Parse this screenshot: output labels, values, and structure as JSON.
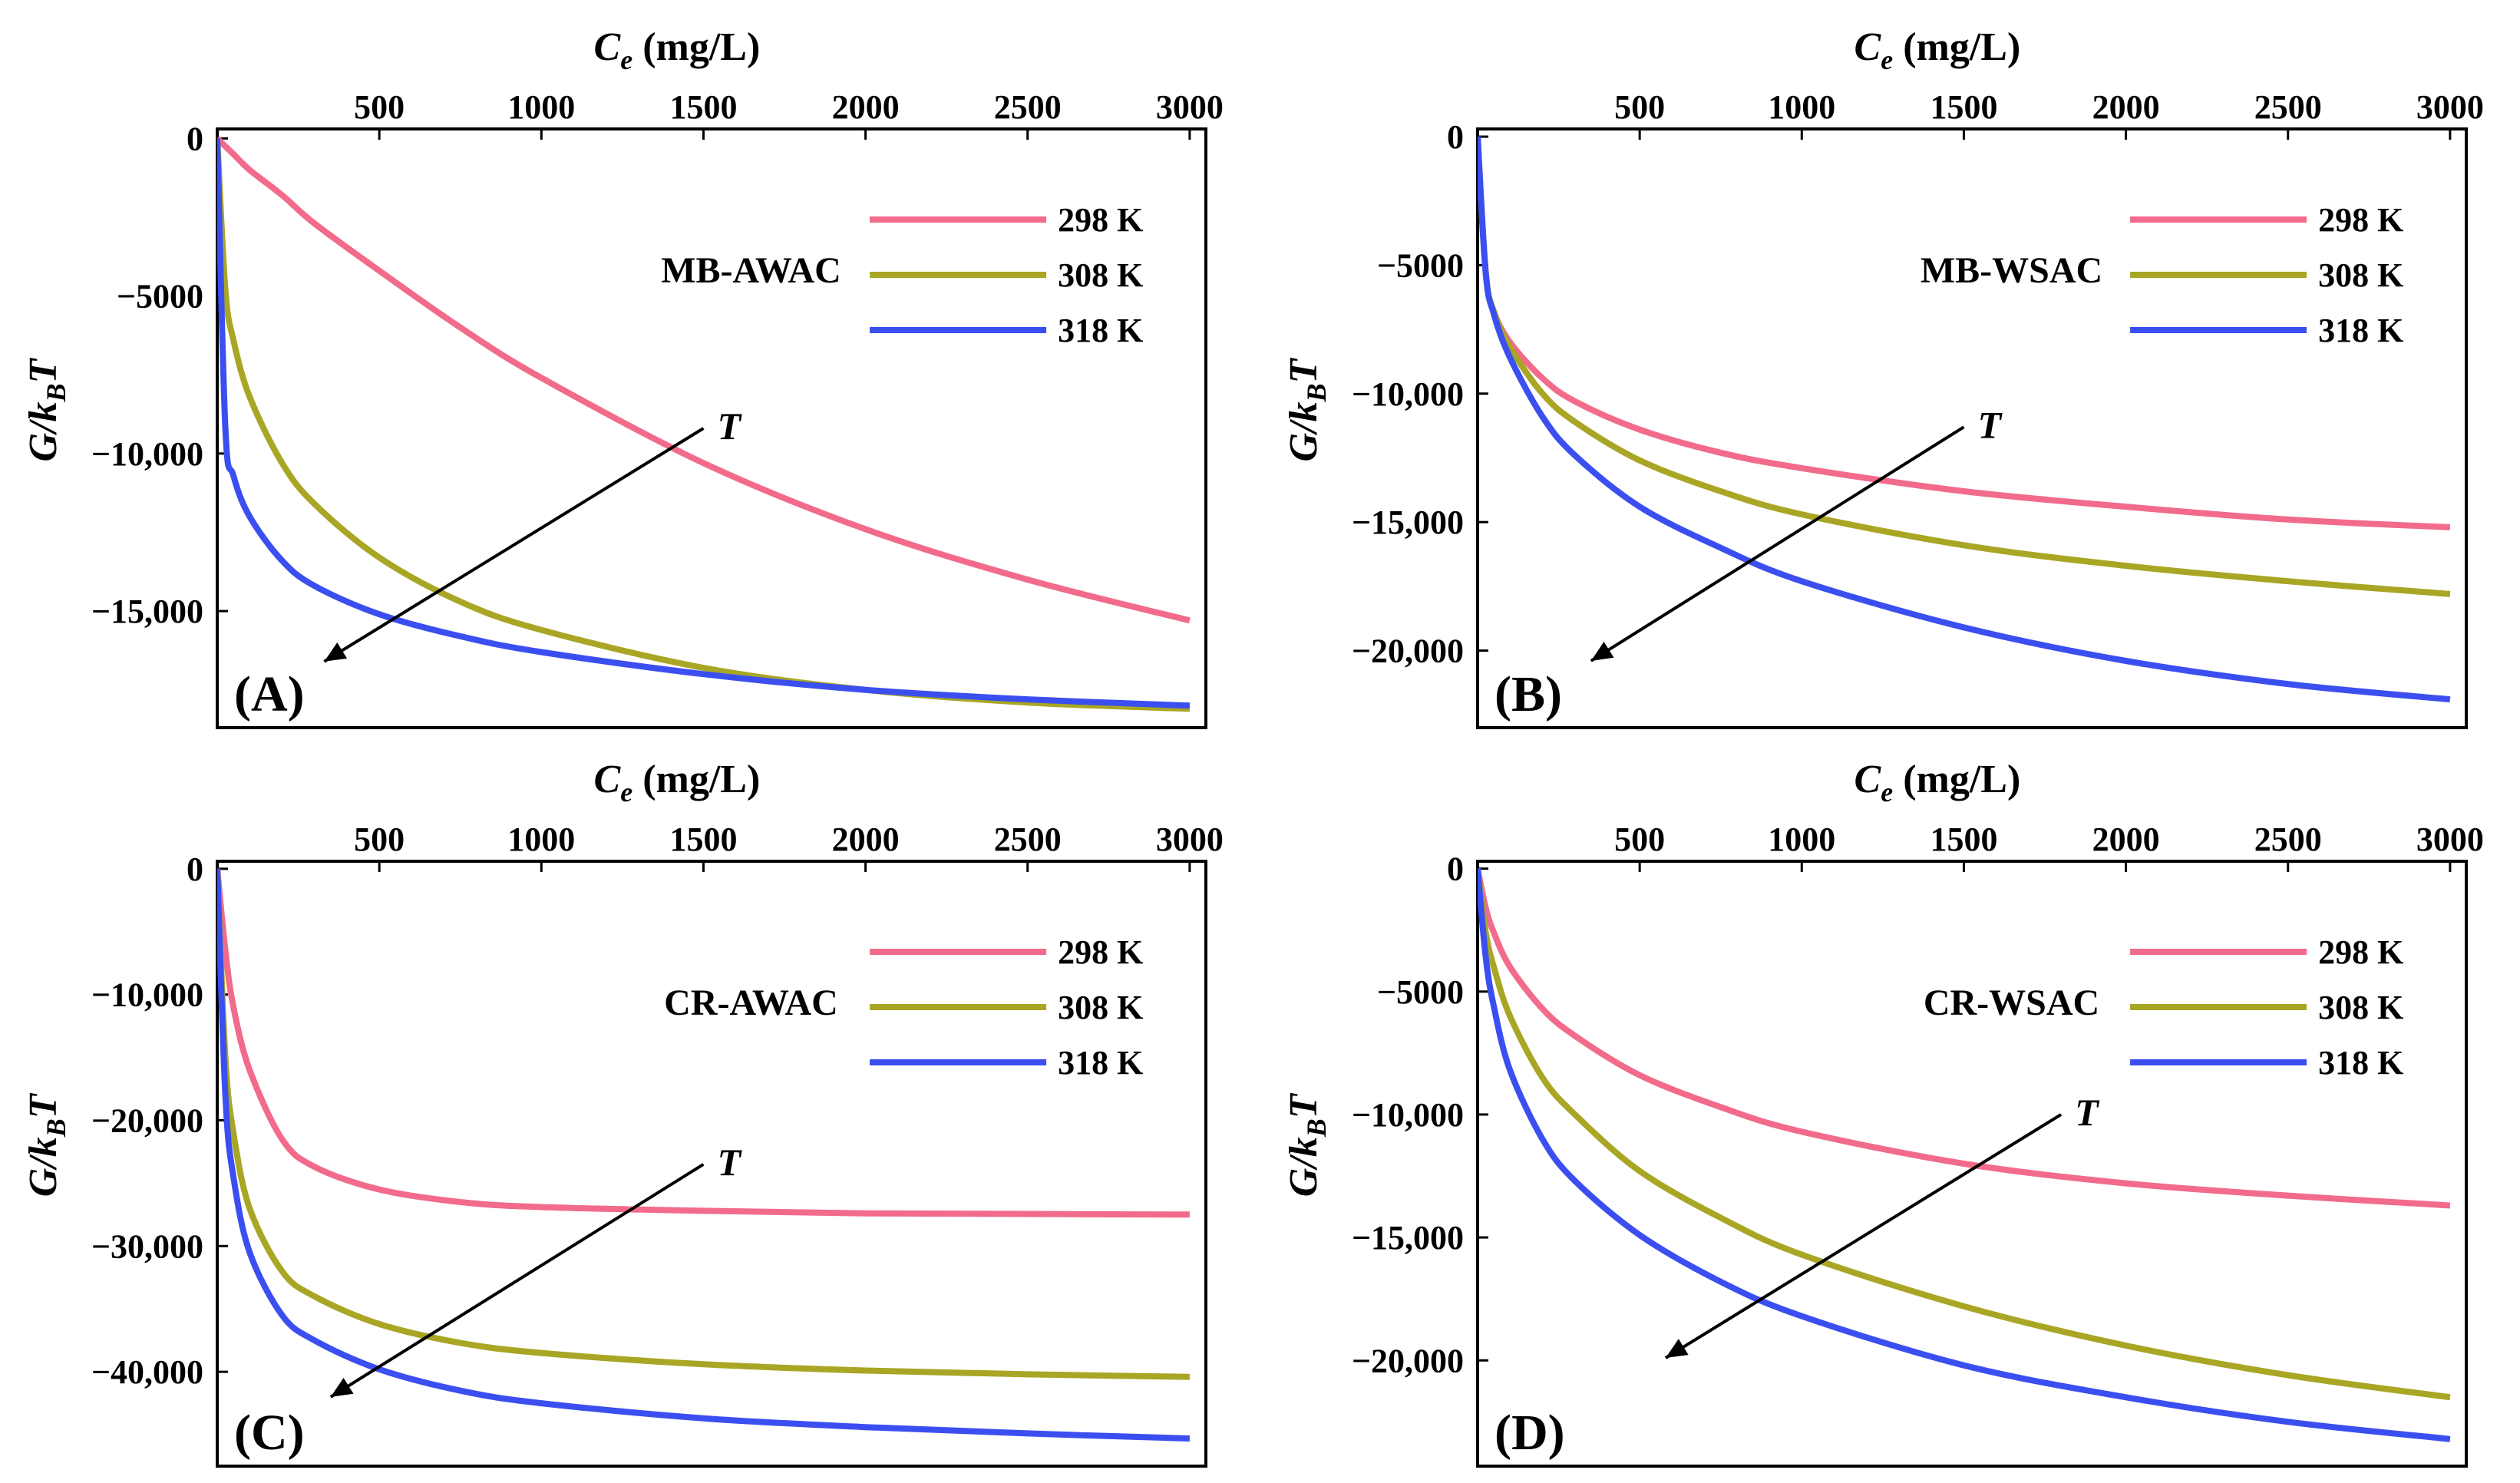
{
  "figure": {
    "x_axis_label_main": "C",
    "x_axis_label_sub": "e",
    "x_axis_label_unit": " (mg/L)",
    "y_axis_label_main": "G/k",
    "y_axis_label_sub": "B",
    "y_axis_label_end": "T",
    "arrow_label": "T"
  },
  "colors": {
    "298 K": "#f26b8a",
    "308 K": "#a8a624",
    "318 K": "#3b4ff0",
    "axis": "#000000"
  },
  "chart_data": [
    {
      "type": "line",
      "panel": "(A)",
      "sample": "MB-AWAC",
      "xlabel": "Ce (mg/L)",
      "ylabel": "G/kBT",
      "x_ticks": [
        500,
        1000,
        1500,
        2000,
        2500,
        3000
      ],
      "x_tick_labels": [
        "500",
        "1000",
        "1500",
        "2000",
        "2500",
        "3000"
      ],
      "y_ticks": [
        0,
        -5000,
        -10000,
        -15000
      ],
      "y_tick_labels": [
        "0",
        "−5000",
        "−10,000",
        "−15,000"
      ],
      "xlim": [
        0,
        3050
      ],
      "ylim": [
        -18700,
        300
      ],
      "legend": [
        "298 K",
        "308 K",
        "318 K"
      ],
      "legend_position": "top-right",
      "arrow": {
        "from": [
          1500,
          -9200
        ],
        "to": [
          330,
          -16600
        ]
      },
      "x": [
        0,
        25,
        50,
        100,
        200,
        300,
        500,
        750,
        1000,
        1500,
        2000,
        2500,
        3000
      ],
      "series": [
        {
          "name": "298 K",
          "values": [
            0,
            -250,
            -500,
            -1000,
            -1800,
            -2700,
            -4200,
            -6000,
            -7600,
            -10300,
            -12400,
            -14000,
            -15300
          ]
        },
        {
          "name": "308 K",
          "values": [
            0,
            -4800,
            -6400,
            -8200,
            -10300,
            -11600,
            -13300,
            -14700,
            -15600,
            -16800,
            -17500,
            -17900,
            -18100
          ]
        },
        {
          "name": "318 K",
          "values": [
            0,
            -9200,
            -10700,
            -12000,
            -13400,
            -14200,
            -15100,
            -15800,
            -16300,
            -17000,
            -17500,
            -17800,
            -18000
          ]
        }
      ]
    },
    {
      "type": "line",
      "panel": "(B)",
      "sample": "MB-WSAC",
      "xlabel": "Ce (mg/L)",
      "ylabel": "G/kBT",
      "x_ticks": [
        500,
        1000,
        1500,
        2000,
        2500,
        3000
      ],
      "x_tick_labels": [
        "500",
        "1000",
        "1500",
        "2000",
        "2500",
        "3000"
      ],
      "y_ticks": [
        0,
        -5000,
        -10000,
        -15000,
        -20000
      ],
      "y_tick_labels": [
        "0",
        "−5000",
        "−10,000",
        "−15,000",
        "−20,000"
      ],
      "xlim": [
        0,
        3050
      ],
      "ylim": [
        -23000,
        300
      ],
      "legend": [
        "298 K",
        "308 K",
        "318 K"
      ],
      "legend_position": "top-right",
      "arrow": {
        "from": [
          1500,
          -11300
        ],
        "to": [
          350,
          -20400
        ]
      },
      "x": [
        0,
        25,
        50,
        100,
        200,
        300,
        500,
        750,
        1000,
        1500,
        2000,
        2500,
        3000
      ],
      "series": [
        {
          "name": "298 K",
          "values": [
            0,
            -5300,
            -6800,
            -8000,
            -9400,
            -10300,
            -11400,
            -12300,
            -12900,
            -13800,
            -14400,
            -14900,
            -15200
          ]
        },
        {
          "name": "308 K",
          "values": [
            0,
            -5300,
            -6800,
            -8200,
            -10000,
            -11100,
            -12600,
            -13800,
            -14700,
            -15900,
            -16700,
            -17300,
            -17800
          ]
        },
        {
          "name": "318 K",
          "values": [
            0,
            -5300,
            -6900,
            -8600,
            -10900,
            -12400,
            -14400,
            -16000,
            -17300,
            -19100,
            -20400,
            -21300,
            -21900
          ]
        }
      ]
    },
    {
      "type": "line",
      "panel": "(C)",
      "sample": "CR-AWAC",
      "xlabel": "Ce (mg/L)",
      "ylabel": "G/kBT",
      "x_ticks": [
        500,
        1000,
        1500,
        2000,
        2500,
        3000
      ],
      "x_tick_labels": [
        "500",
        "1000",
        "1500",
        "2000",
        "2500",
        "3000"
      ],
      "y_ticks": [
        0,
        -10000,
        -20000,
        -30000,
        -40000
      ],
      "y_tick_labels": [
        "0",
        "−10,000",
        "−20,000",
        "−30,000",
        "−40,000"
      ],
      "xlim": [
        0,
        3050
      ],
      "ylim": [
        -47500,
        600
      ],
      "legend": [
        "298 K",
        "308 K",
        "318 K"
      ],
      "legend_position": "top-right",
      "arrow": {
        "from": [
          1500,
          -23500
        ],
        "to": [
          350,
          -42000
        ]
      },
      "x": [
        0,
        25,
        50,
        100,
        200,
        300,
        500,
        750,
        1000,
        1500,
        2000,
        2500,
        3000
      ],
      "series": [
        {
          "name": "298 K",
          "values": [
            0,
            -6500,
            -11000,
            -16000,
            -21500,
            -23700,
            -25500,
            -26500,
            -26900,
            -27200,
            -27400,
            -27450,
            -27500
          ]
        },
        {
          "name": "308 K",
          "values": [
            0,
            -15000,
            -21000,
            -27000,
            -32000,
            -34000,
            -36200,
            -37700,
            -38500,
            -39400,
            -39900,
            -40200,
            -40400
          ]
        },
        {
          "name": "318 K",
          "values": [
            0,
            -18000,
            -24500,
            -30500,
            -35500,
            -37500,
            -39800,
            -41500,
            -42500,
            -43700,
            -44400,
            -44900,
            -45300
          ]
        }
      ]
    },
    {
      "type": "line",
      "panel": "(D)",
      "sample": "CR-WSAC",
      "xlabel": "Ce (mg/L)",
      "ylabel": "G/kBT",
      "x_ticks": [
        500,
        1000,
        1500,
        2000,
        2500,
        3000
      ],
      "x_tick_labels": [
        "500",
        "1000",
        "1500",
        "2000",
        "2500",
        "3000"
      ],
      "y_ticks": [
        0,
        -5000,
        -10000,
        -15000,
        -20000
      ],
      "y_tick_labels": [
        "0",
        "−5000",
        "−10,000",
        "−15,000",
        "−20,000"
      ],
      "xlim": [
        0,
        3050
      ],
      "ylim": [
        -24300,
        300
      ],
      "legend": [
        "298 K",
        "308 K",
        "318 K"
      ],
      "legend_position": "top-right",
      "arrow": {
        "from": [
          1800,
          -10000
        ],
        "to": [
          580,
          -19900
        ]
      },
      "x": [
        0,
        25,
        50,
        100,
        200,
        300,
        500,
        750,
        1000,
        1500,
        2000,
        2500,
        3000
      ],
      "series": [
        {
          "name": "298 K",
          "values": [
            0,
            -1600,
            -2600,
            -4000,
            -5700,
            -6800,
            -8400,
            -9700,
            -10700,
            -12000,
            -12800,
            -13300,
            -13700
          ]
        },
        {
          "name": "308 K",
          "values": [
            0,
            -2600,
            -4000,
            -6000,
            -8500,
            -10000,
            -12300,
            -14200,
            -15700,
            -17800,
            -19400,
            -20600,
            -21500
          ]
        },
        {
          "name": "318 K",
          "values": [
            0,
            -3600,
            -5600,
            -8200,
            -11000,
            -12700,
            -14900,
            -16800,
            -18200,
            -20200,
            -21500,
            -22500,
            -23200
          ]
        }
      ]
    }
  ]
}
